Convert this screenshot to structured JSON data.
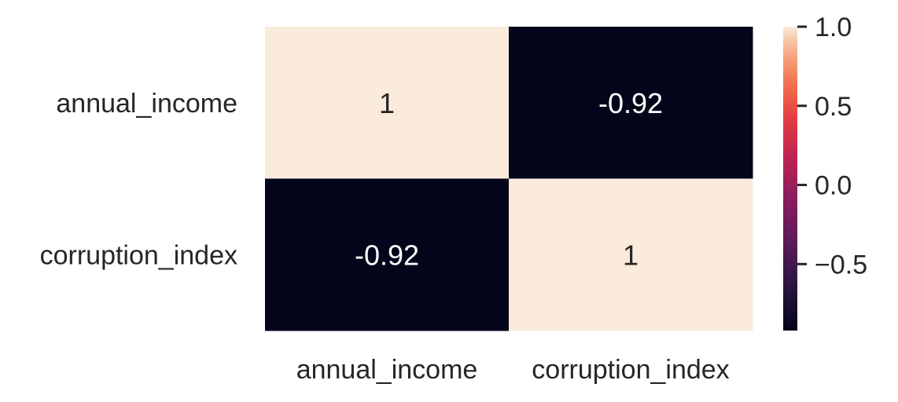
{
  "chart_data": {
    "type": "heatmap",
    "title": "",
    "xlabel": "",
    "ylabel": "",
    "row_labels": [
      "annual_income",
      "corruption_index"
    ],
    "col_labels": [
      "annual_income",
      "corruption_index"
    ],
    "values": [
      [
        1,
        -0.92
      ],
      [
        -0.92,
        1
      ]
    ],
    "cell_labels": [
      [
        "1",
        "-0.92"
      ],
      [
        "-0.92",
        "1"
      ]
    ],
    "colormap": "rocket",
    "vmin": -0.92,
    "vmax": 1.0,
    "colorbar": {
      "placement": "right",
      "ticks": [
        1.0,
        0.5,
        0.0,
        -0.5
      ],
      "tick_labels": [
        "1.0",
        "0.5",
        "0.0",
        "−0.5"
      ]
    },
    "colors": {
      "low": "#03051a",
      "high": "#faebdd"
    }
  }
}
